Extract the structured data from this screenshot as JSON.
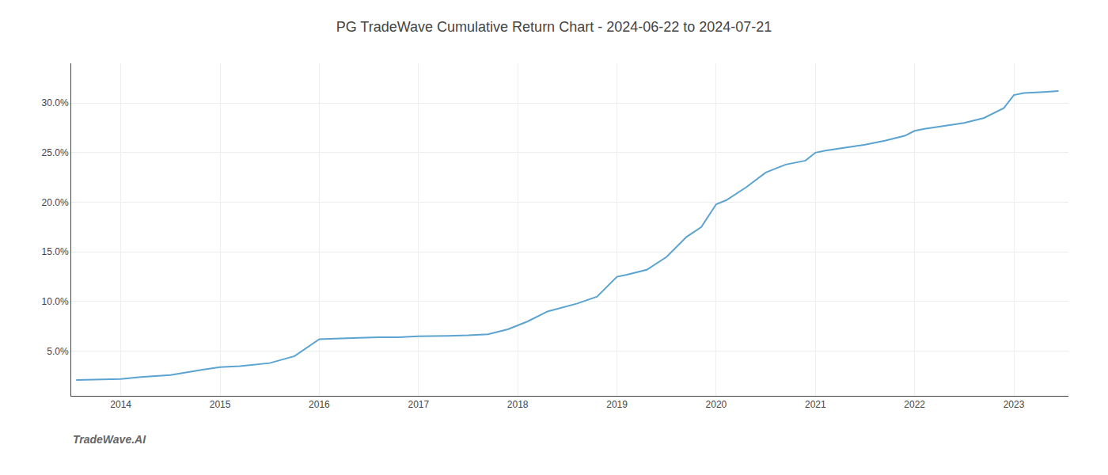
{
  "chart_data": {
    "type": "line",
    "title": "PG TradeWave Cumulative Return Chart - 2024-06-22 to 2024-07-21",
    "annotations": [
      "TradeWave.AI"
    ],
    "x": [
      2013.55,
      2013.75,
      2014.0,
      2014.2,
      2014.5,
      2014.8,
      2015.0,
      2015.2,
      2015.5,
      2015.75,
      2016.0,
      2016.1,
      2016.2,
      2016.4,
      2016.6,
      2016.8,
      2017.0,
      2017.1,
      2017.3,
      2017.5,
      2017.7,
      2017.9,
      2018.1,
      2018.3,
      2018.5,
      2018.6,
      2018.8,
      2019.0,
      2019.1,
      2019.3,
      2019.5,
      2019.7,
      2019.85,
      2020.0,
      2020.1,
      2020.3,
      2020.5,
      2020.7,
      2020.9,
      2021.0,
      2021.1,
      2021.3,
      2021.5,
      2021.7,
      2021.9,
      2022.0,
      2022.1,
      2022.3,
      2022.5,
      2022.7,
      2022.9,
      2023.0,
      2023.1,
      2023.3,
      2023.45
    ],
    "values": [
      2.1,
      2.15,
      2.2,
      2.4,
      2.6,
      3.1,
      3.4,
      3.5,
      3.8,
      4.5,
      6.2,
      6.25,
      6.3,
      6.35,
      6.4,
      6.4,
      6.5,
      6.5,
      6.55,
      6.6,
      6.7,
      7.2,
      8.0,
      9.0,
      9.5,
      9.8,
      10.5,
      12.5,
      12.7,
      13.2,
      14.5,
      16.5,
      17.5,
      19.8,
      20.2,
      21.5,
      23.0,
      23.8,
      24.2,
      25.0,
      25.2,
      25.5,
      25.8,
      26.2,
      26.7,
      27.2,
      27.4,
      27.7,
      28.0,
      28.5,
      29.5,
      30.8,
      31.0,
      31.1,
      31.2
    ],
    "color": "#5ba3d0",
    "xlim": [
      2013.5,
      2023.55
    ],
    "ylim": [
      0.5,
      34.0
    ],
    "xticks": [
      2014,
      2015,
      2016,
      2017,
      2018,
      2019,
      2020,
      2021,
      2022,
      2023
    ],
    "yticks": [
      {
        "value": 5.0,
        "label": "5.0%"
      },
      {
        "value": 10.0,
        "label": "10.0%"
      },
      {
        "value": 15.0,
        "label": "15.0%"
      },
      {
        "value": 20.0,
        "label": "20.0%"
      },
      {
        "value": 25.0,
        "label": "25.0%"
      },
      {
        "value": 30.0,
        "label": "30.0%"
      }
    ],
    "grid": true
  }
}
